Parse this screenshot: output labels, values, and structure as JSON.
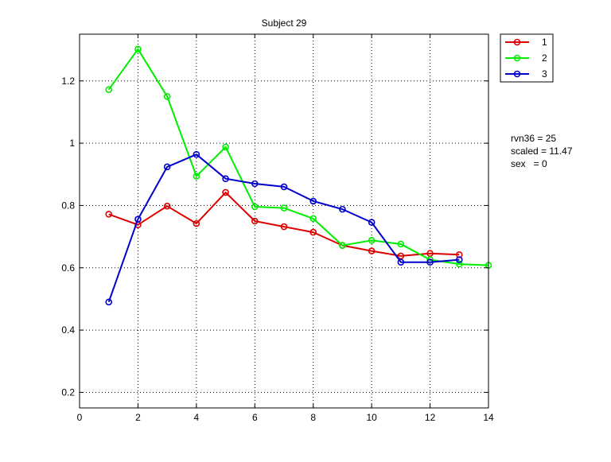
{
  "chart_data": {
    "type": "line",
    "title": "Subject 29",
    "xlabel": "",
    "ylabel": "",
    "xlim": [
      0,
      14
    ],
    "ylim": [
      0.15,
      1.35
    ],
    "xticks": [
      0,
      2,
      4,
      6,
      8,
      10,
      12,
      14
    ],
    "yticks": [
      0.2,
      0.4,
      0.6,
      0.8,
      1,
      1.2
    ],
    "xtick_labels": [
      "0",
      "2",
      "4",
      "6",
      "8",
      "10",
      "12",
      "14"
    ],
    "ytick_labels": [
      "0.2",
      "0.4",
      "0.6",
      "0.8",
      "1",
      "1.2"
    ],
    "grid": true,
    "legend_position": "outside top-right",
    "marker": "circle",
    "series": [
      {
        "name": "1",
        "color": "#dd0000",
        "x": [
          1,
          2,
          3,
          4,
          5,
          6,
          7,
          8,
          9,
          10,
          11,
          12,
          13
        ],
        "y": [
          0.772,
          0.738,
          0.798,
          0.742,
          0.842,
          0.75,
          0.732,
          0.714,
          0.672,
          0.654,
          0.638,
          0.646,
          0.642
        ]
      },
      {
        "name": "2",
        "color": "#00ee00",
        "x": [
          1,
          2,
          3,
          4,
          5,
          6,
          7,
          8,
          9,
          10,
          11,
          12,
          13,
          14
        ],
        "y": [
          1.172,
          1.302,
          1.15,
          0.894,
          0.988,
          0.796,
          0.792,
          0.758,
          0.672,
          0.688,
          0.676,
          0.626,
          0.612,
          0.608
        ]
      },
      {
        "name": "3",
        "color": "#0000cc",
        "x": [
          1,
          2,
          3,
          4,
          5,
          6,
          7,
          8,
          9,
          10,
          11,
          12,
          13
        ],
        "y": [
          0.49,
          0.756,
          0.924,
          0.964,
          0.886,
          0.87,
          0.86,
          0.814,
          0.788,
          0.746,
          0.618,
          0.618,
          0.626
        ]
      }
    ],
    "annotations": [
      "rvn36 = 25",
      "scaled = 11.47",
      "sex   = 0"
    ]
  }
}
